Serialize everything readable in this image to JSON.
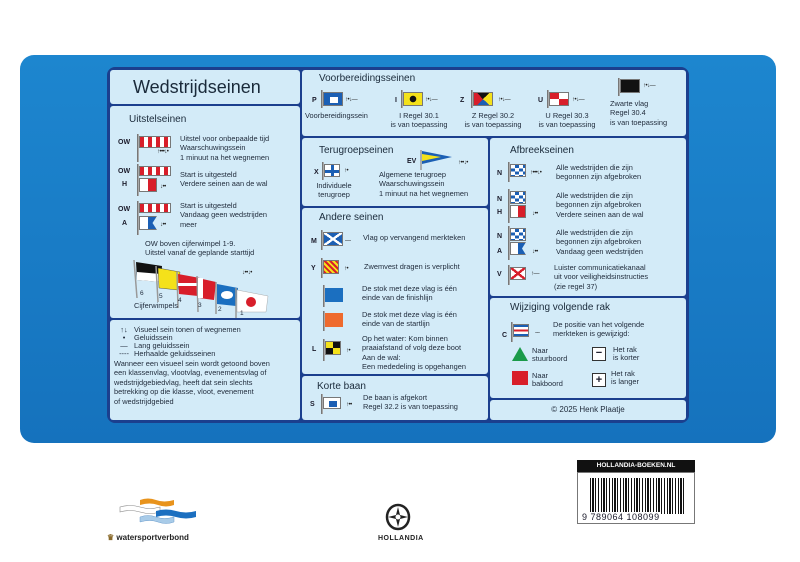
{
  "title": "Wedstrijdseinen",
  "colors": {
    "background": "#1a7fc8",
    "panel": "#d3ebf8",
    "border": "#1b3f8e"
  },
  "uitstel": {
    "heading": "Uitstelseinen",
    "rows": [
      {
        "flags": [
          "OW"
        ],
        "lines": [
          "Uitstel voor onbepaalde tijd",
          "Waarschuwingssein",
          "1 minuut na het wegnemen"
        ],
        "signal": "↑•••↓•"
      },
      {
        "flags": [
          "OW",
          "H"
        ],
        "lines": [
          "Start is uitgesteld",
          "Verdere seinen aan de wal"
        ],
        "signal": "↓••"
      },
      {
        "flags": [
          "OW",
          "A"
        ],
        "lines": [
          "Start is uitgesteld",
          "Vandaag geen wedstrijden",
          "meer"
        ],
        "signal": "↓••"
      }
    ],
    "note": [
      "OW boven cijferwimpel 1-9.",
      "Uitstel vanaf de geplande starttijd"
    ],
    "pennants": [
      "6",
      "5",
      "4",
      "3",
      "2",
      "1"
    ],
    "pennants_label": "Cijferwimpels",
    "pennant_signal": "↓••↓•"
  },
  "legend": {
    "items": [
      {
        "sym": "↑↓",
        "text": "Visueel sein tonen of wegnemen"
      },
      {
        "sym": "•",
        "text": "Geluidssein"
      },
      {
        "sym": "—",
        "text": "Lang geluidssein"
      },
      {
        "sym": "----",
        "text": "Herhaalde geluidsseinen"
      }
    ],
    "para": [
      "Wanneer een visueel sein wordt getoond boven",
      "een klassenvlag, vlootvlag, evenementsvlag of",
      "wedstrijdgebiedvlag, heeft dat sein slechts",
      "betrekking op die klasse, vloot, evenement",
      "of wedstrijdgebied"
    ]
  },
  "voorbereiding": {
    "heading": "Voorbereidingsseinen",
    "items": [
      {
        "letter": "P",
        "lines": [
          "Voorbereidingssein"
        ],
        "signal": "↑•↓—"
      },
      {
        "letter": "I",
        "lines": [
          "I Regel 30.1",
          "is van toepassing"
        ],
        "signal": "↑•↓—"
      },
      {
        "letter": "Z",
        "lines": [
          "Z Regel 30.2",
          "is van toepassing"
        ],
        "signal": "↑•↓—"
      },
      {
        "letter": "U",
        "lines": [
          "U Regel 30.3",
          "is van toepassing"
        ],
        "signal": "↑•↓—"
      },
      {
        "letter": "",
        "lines": [
          "Zwarte vlag",
          "Regel 30.4",
          "is van toepassing"
        ],
        "signal": "↑•↓—"
      }
    ]
  },
  "terugroep": {
    "heading": "Terugroepseinen",
    "x": {
      "letter": "X",
      "lines": [
        "Individuele",
        "terugroep"
      ],
      "signal": "↑•"
    },
    "ev": {
      "letter": "EV",
      "lines": [
        "Algemene terugroep",
        "Waarschuwingssein",
        "1 minuut na het wegnemen"
      ],
      "signal": "↑••↓•"
    }
  },
  "andere": {
    "heading": "Andere seinen",
    "items": [
      {
        "letter": "M",
        "lines": [
          "Vlag op vervangend merkteken"
        ],
        "signal": "—"
      },
      {
        "letter": "Y",
        "lines": [
          "Zwemvest dragen is verplicht"
        ],
        "signal": "↑•"
      },
      {
        "letter": "",
        "lines": [
          "De stok met deze vlag is één",
          "einde van de finishlijn"
        ]
      },
      {
        "letter": "",
        "lines": [
          "De stok met deze vlag is één",
          "einde van de startlijn"
        ]
      },
      {
        "letter": "L",
        "lines": [
          "Op het water: Kom binnen",
          "praaiafstand of volg deze boot",
          "Aan de wal:",
          "Een mededeling is opgehangen"
        ],
        "signal": "↑•"
      }
    ]
  },
  "korte": {
    "heading": "Korte baan",
    "letter": "S",
    "lines": [
      "De baan is afgekort",
      "Regel 32.2 is van toepassing"
    ],
    "signal": "↑••"
  },
  "afbreek": {
    "heading": "Afbreekseinen",
    "items": [
      {
        "letters": [
          "N"
        ],
        "lines": [
          "Alle wedstrijden die zijn",
          "begonnen zijn afgebroken"
        ],
        "signal": "↑•••↓•"
      },
      {
        "letters": [
          "N",
          "H"
        ],
        "lines": [
          "Alle wedstrijden die zijn",
          "begonnen zijn afgebroken",
          "Verdere seinen aan de wal"
        ],
        "signal": "↓••"
      },
      {
        "letters": [
          "N",
          "A"
        ],
        "lines": [
          "Alle wedstrijden die zijn",
          "begonnen zijn afgebroken",
          "Vandaag geen wedstrijden"
        ],
        "signal": "↓••"
      },
      {
        "letters": [
          "V"
        ],
        "lines": [
          "Luister communicatiekanaal",
          "uit voor veiligheidsinstructies",
          "(zie regel 37)"
        ],
        "signal": "↑—"
      }
    ]
  },
  "wijziging": {
    "heading": "Wijziging volgende rak",
    "letter": "C",
    "signal": "---",
    "lines": [
      "De positie van het volgende",
      "merkteken is gewijzigd:"
    ],
    "opts": [
      {
        "icon": "green-triangle-icon",
        "lines": [
          "Naar",
          "stuurboord"
        ]
      },
      {
        "icon": "minus-box-icon",
        "lines": [
          "Het rak",
          "is korter"
        ]
      },
      {
        "icon": "red-square-icon",
        "lines": [
          "Naar",
          "bakboord"
        ]
      },
      {
        "icon": "plus-box-icon",
        "lines": [
          "Het rak",
          "is langer"
        ]
      }
    ]
  },
  "copyright": "© 2025 Henk Plaatje",
  "footer": {
    "logo1": "watersportverbond",
    "logo2": "HOLLANDIA",
    "barcode_header": "HOLLANDIA-BOEKEN.NL",
    "isbn": "9 789064 108099"
  }
}
